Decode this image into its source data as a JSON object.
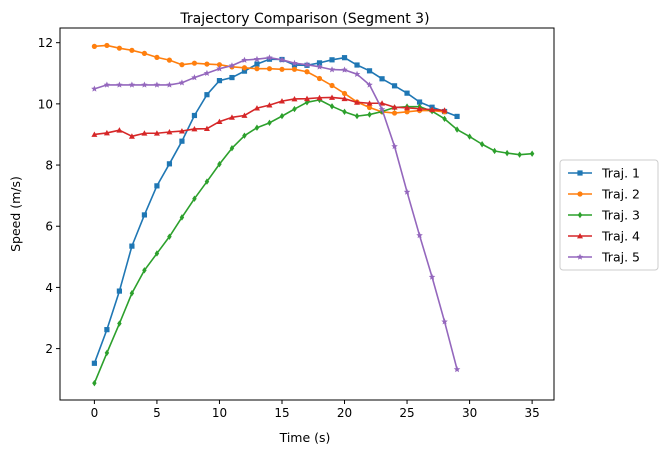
{
  "chart_data": {
    "type": "line",
    "title": "Trajectory Comparison (Segment 3)",
    "xlabel": "Time (s)",
    "ylabel": "Speed (m/s)",
    "xlim": [
      -2.75,
      36.75
    ],
    "ylim": [
      0.32,
      12.48
    ],
    "xticks": [
      0,
      5,
      10,
      15,
      20,
      25,
      30,
      35
    ],
    "yticks": [
      2,
      4,
      6,
      8,
      10,
      12
    ],
    "grid": false,
    "legend_placement": "center-right-outside",
    "series": [
      {
        "name": "Traj. 1",
        "color": "#1f77b4",
        "marker": "square",
        "x": [
          0,
          1,
          2,
          3,
          4,
          5,
          6,
          7,
          8,
          9,
          10,
          11,
          12,
          13,
          14,
          15,
          16,
          17,
          18,
          19,
          20,
          21,
          22,
          23,
          24,
          25,
          26,
          27,
          28,
          29
        ],
        "y": [
          1.52,
          2.62,
          3.88,
          5.35,
          6.37,
          7.32,
          8.04,
          8.78,
          9.62,
          10.3,
          10.76,
          10.86,
          11.07,
          11.3,
          11.46,
          11.45,
          11.27,
          11.26,
          11.34,
          11.44,
          11.51,
          11.27,
          11.08,
          10.82,
          10.59,
          10.35,
          10.06,
          9.89,
          9.75,
          9.59
        ]
      },
      {
        "name": "Traj. 2",
        "color": "#ff7f0e",
        "marker": "circle",
        "x": [
          0,
          1,
          2,
          3,
          4,
          5,
          6,
          7,
          8,
          9,
          10,
          11,
          12,
          13,
          14,
          15,
          16,
          17,
          18,
          19,
          20,
          21,
          22,
          23,
          24,
          25,
          26,
          27,
          28
        ],
        "y": [
          11.88,
          11.91,
          11.82,
          11.75,
          11.65,
          11.52,
          11.43,
          11.28,
          11.33,
          11.3,
          11.28,
          11.21,
          11.18,
          11.15,
          11.15,
          11.13,
          11.13,
          11.05,
          10.83,
          10.6,
          10.34,
          10.06,
          9.88,
          9.74,
          9.7,
          9.74,
          9.78,
          9.78,
          9.74
        ]
      },
      {
        "name": "Traj. 3",
        "color": "#2ca02c",
        "marker": "diamond",
        "x": [
          0,
          1,
          2,
          3,
          4,
          5,
          6,
          7,
          8,
          9,
          10,
          11,
          12,
          13,
          14,
          15,
          16,
          17,
          18,
          19,
          20,
          21,
          22,
          23,
          24,
          25,
          26,
          27,
          28,
          29,
          30,
          31,
          32,
          33,
          34,
          35
        ],
        "y": [
          0.87,
          1.86,
          2.82,
          3.81,
          4.56,
          5.11,
          5.66,
          6.29,
          6.9,
          7.46,
          8.03,
          8.55,
          8.96,
          9.22,
          9.38,
          9.6,
          9.83,
          10.05,
          10.13,
          9.92,
          9.74,
          9.6,
          9.65,
          9.75,
          9.88,
          9.91,
          9.91,
          9.76,
          9.51,
          9.16,
          8.93,
          8.68,
          8.46,
          8.39,
          8.34,
          8.37
        ]
      },
      {
        "name": "Traj. 4",
        "color": "#d62728",
        "marker": "triangle",
        "x": [
          0,
          1,
          2,
          3,
          4,
          5,
          6,
          7,
          8,
          9,
          10,
          11,
          12,
          13,
          14,
          15,
          16,
          17,
          18,
          19,
          20,
          21,
          22,
          23,
          24,
          25,
          26,
          27,
          28
        ],
        "y": [
          9.0,
          9.05,
          9.14,
          8.94,
          9.04,
          9.04,
          9.08,
          9.11,
          9.18,
          9.19,
          9.42,
          9.56,
          9.62,
          9.86,
          9.96,
          10.09,
          10.16,
          10.17,
          10.2,
          10.21,
          10.17,
          10.05,
          10.02,
          10.02,
          9.89,
          9.87,
          9.84,
          9.81,
          9.79
        ]
      },
      {
        "name": "Traj. 5",
        "color": "#9467bd",
        "marker": "star",
        "x": [
          0,
          1,
          2,
          3,
          4,
          5,
          6,
          7,
          8,
          9,
          10,
          11,
          12,
          13,
          14,
          15,
          16,
          17,
          18,
          19,
          20,
          21,
          22,
          23,
          24,
          25,
          26,
          27,
          28,
          29
        ],
        "y": [
          10.49,
          10.62,
          10.62,
          10.62,
          10.62,
          10.62,
          10.62,
          10.69,
          10.86,
          11.0,
          11.15,
          11.25,
          11.43,
          11.46,
          11.51,
          11.44,
          11.33,
          11.28,
          11.21,
          11.12,
          11.11,
          10.97,
          10.62,
          9.82,
          8.61,
          7.12,
          5.7,
          4.34,
          2.88,
          1.32
        ]
      }
    ]
  }
}
